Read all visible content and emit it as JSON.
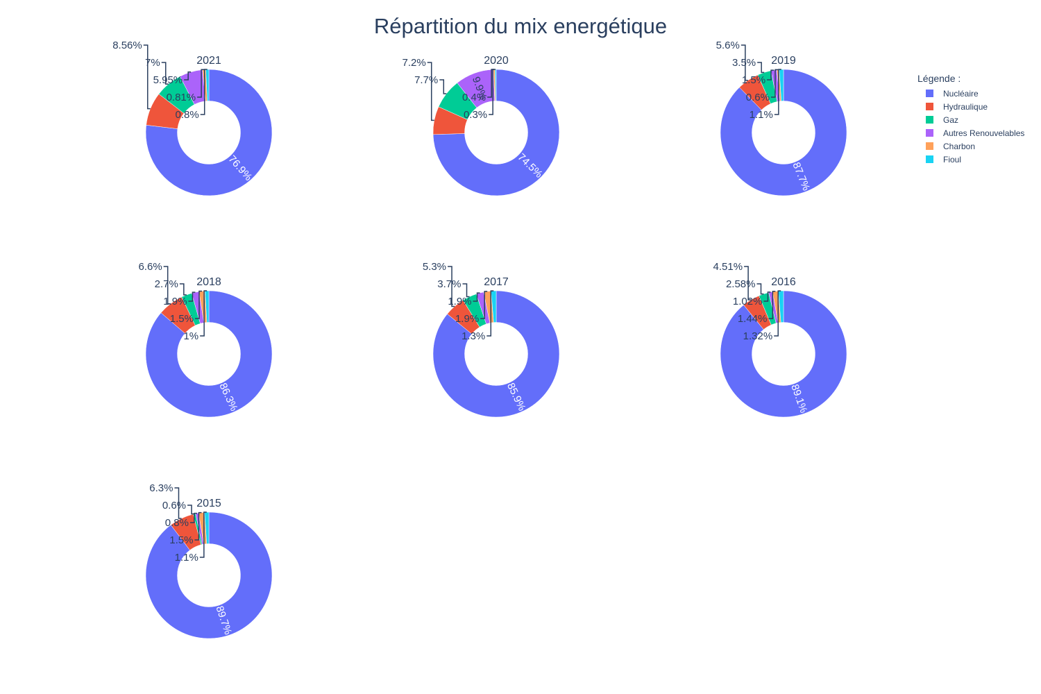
{
  "title": "Répartition du mix energétique",
  "legend": {
    "title": "Légende :",
    "items": [
      {
        "label": "Nucléaire",
        "color": "#636efa"
      },
      {
        "label": "Hydraulique",
        "color": "#ef553b"
      },
      {
        "label": "Gaz",
        "color": "#00cc96"
      },
      {
        "label": "Autres Renouvelables",
        "color": "#ab63fa"
      },
      {
        "label": "Charbon",
        "color": "#ffa15a"
      },
      {
        "label": "Fioul",
        "color": "#19d3f3"
      }
    ]
  },
  "chart_data": {
    "type": "pie",
    "hole": 0.5,
    "legend_position": "top-right",
    "categories": [
      "Nucléaire",
      "Hydraulique",
      "Gaz",
      "Autres Renouvelables",
      "Charbon",
      "Fioul"
    ],
    "charts": [
      {
        "title": "2021",
        "values": [
          76.9,
          8.56,
          7,
          5.95,
          0.81,
          0.8
        ],
        "labels": [
          "76.9%",
          "8.56%",
          "7%",
          "5.95%",
          "0.81%",
          "0.8%"
        ]
      },
      {
        "title": "2020",
        "values": [
          74.5,
          7.2,
          7.7,
          9.9,
          0.4,
          0.3
        ],
        "labels": [
          "74.5%",
          "7.2%",
          "7.7%",
          "9.9%",
          "0.4%",
          "0.3%"
        ]
      },
      {
        "title": "2019",
        "values": [
          87.7,
          5.6,
          3.5,
          1.5,
          0.6,
          1.1
        ],
        "labels": [
          "87.7%",
          "5.6%",
          "3.5%",
          "1.5%",
          "0.6%",
          "1.1%"
        ]
      },
      {
        "title": "2018",
        "values": [
          86.3,
          6.6,
          2.7,
          1.9,
          1.5,
          1
        ],
        "labels": [
          "86.3%",
          "6.6%",
          "2.7%",
          "1.9%",
          "1.5%",
          "1%"
        ]
      },
      {
        "title": "2017",
        "values": [
          85.9,
          5.3,
          3.7,
          1.9,
          1.9,
          1.3
        ],
        "labels": [
          "85.9%",
          "5.3%",
          "3.7%",
          "1.9%",
          "1.9%",
          "1.3%"
        ]
      },
      {
        "title": "2016",
        "values": [
          89.1,
          4.51,
          2.58,
          1.02,
          1.44,
          1.32
        ],
        "labels": [
          "89.1%",
          "4.51%",
          "2.58%",
          "1.02%",
          "1.44%",
          "1.32%"
        ]
      },
      {
        "title": "2015",
        "values": [
          89.7,
          6.3,
          0.6,
          0.8,
          1.5,
          1.1
        ],
        "labels": [
          "89.7%",
          "6.3%",
          "0.6%",
          "0.8%",
          "1.5%",
          "1.1%"
        ]
      }
    ]
  }
}
